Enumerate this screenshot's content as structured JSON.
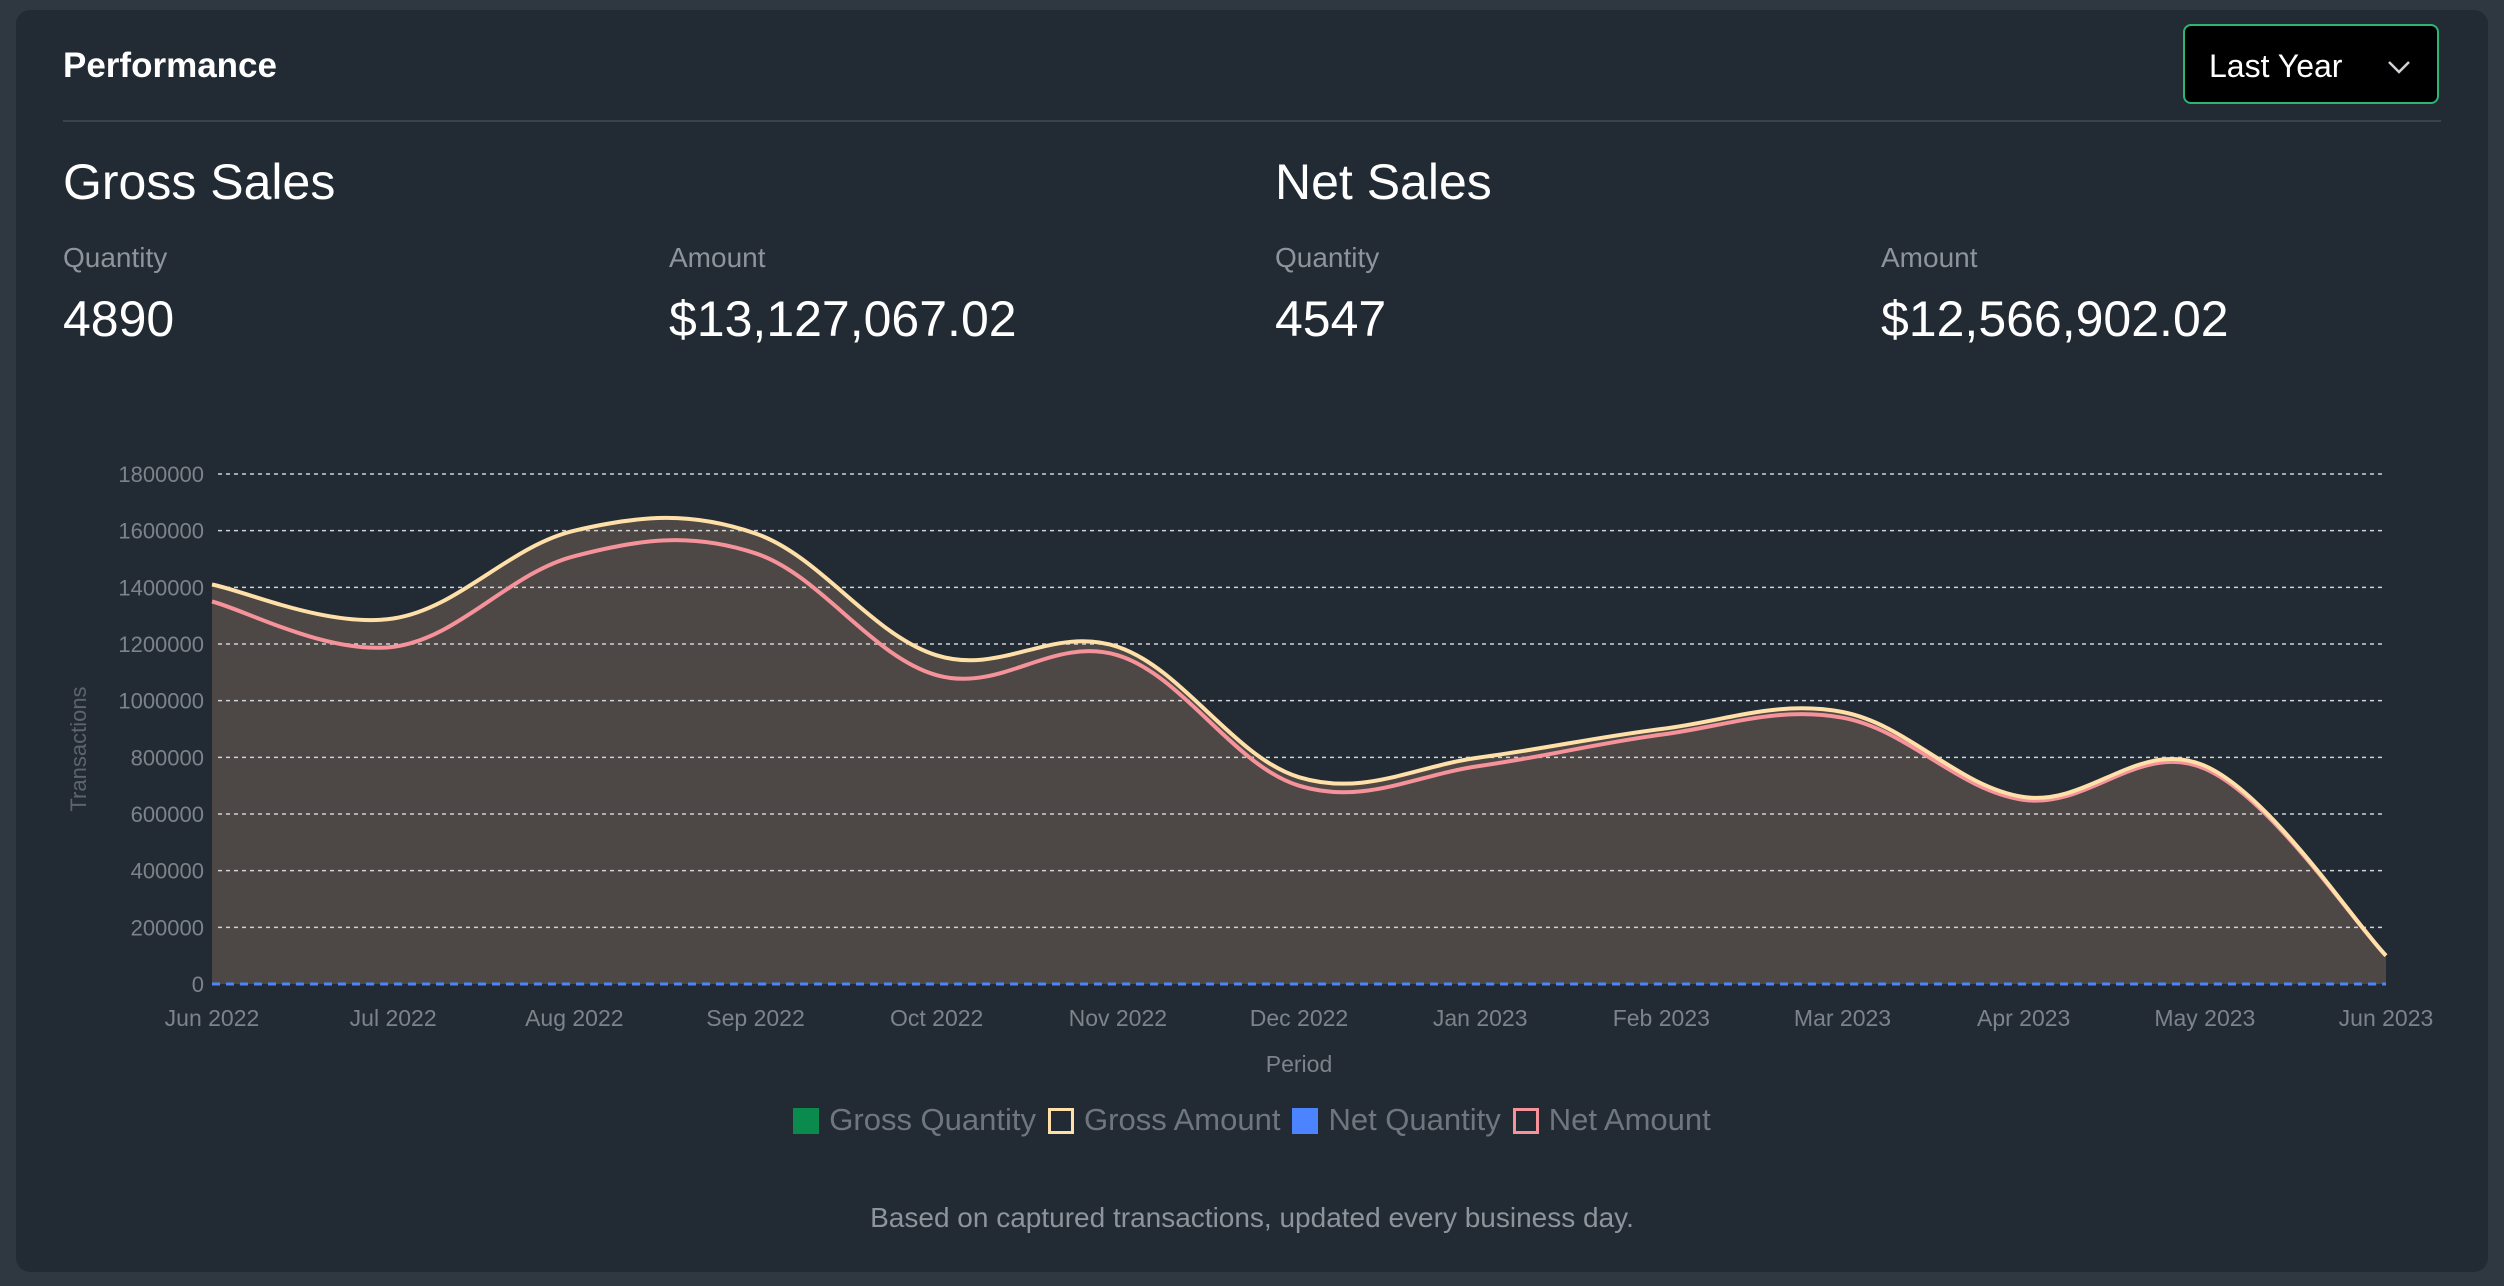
{
  "header": {
    "title": "Performance",
    "period_select": {
      "value": "Last Year"
    }
  },
  "gross_sales": {
    "title": "Gross Sales",
    "quantity_label": "Quantity",
    "quantity_value": "4890",
    "amount_label": "Amount",
    "amount_value": "$13,127,067.02"
  },
  "net_sales": {
    "title": "Net Sales",
    "quantity_label": "Quantity",
    "quantity_value": "4547",
    "amount_label": "Amount",
    "amount_value": "$12,566,902.02"
  },
  "chart_data": {
    "type": "area",
    "xlabel": "Period",
    "ylabel": "Transactions",
    "ylim": [
      0,
      1800000
    ],
    "yticks": [
      0,
      200000,
      400000,
      600000,
      800000,
      1000000,
      1200000,
      1400000,
      1600000,
      1800000
    ],
    "grid": true,
    "legend_position": "bottom",
    "categories": [
      "Jun 2022",
      "Jul 2022",
      "Aug 2022",
      "Sep 2022",
      "Oct 2022",
      "Nov 2022",
      "Dec 2022",
      "Jan 2023",
      "Feb 2023",
      "Mar 2023",
      "Apr 2023",
      "May 2023",
      "Jun 2023"
    ],
    "series": [
      {
        "name": "Gross Quantity",
        "color": "#0b8a4d",
        "style": "dashed",
        "values": [
          0,
          0,
          0,
          0,
          0,
          0,
          0,
          0,
          0,
          0,
          0,
          0,
          0
        ]
      },
      {
        "name": "Gross Amount",
        "color": "#ffe0a8",
        "style": "line",
        "values": [
          1410000,
          1290000,
          1600000,
          1590000,
          1160000,
          1190000,
          730000,
          800000,
          900000,
          960000,
          660000,
          770000,
          100000
        ]
      },
      {
        "name": "Net Quantity",
        "color": "#4c84ff",
        "style": "dashed",
        "values": [
          0,
          0,
          0,
          0,
          0,
          0,
          0,
          0,
          0,
          0,
          0,
          0,
          0
        ]
      },
      {
        "name": "Net Amount",
        "color": "#f5929a",
        "style": "line",
        "values": [
          1350000,
          1190000,
          1510000,
          1520000,
          1090000,
          1160000,
          700000,
          770000,
          880000,
          940000,
          650000,
          760000,
          100000
        ]
      }
    ],
    "area_fill": "#4d4745"
  },
  "footnote": "Based on captured transactions, updated every business day."
}
